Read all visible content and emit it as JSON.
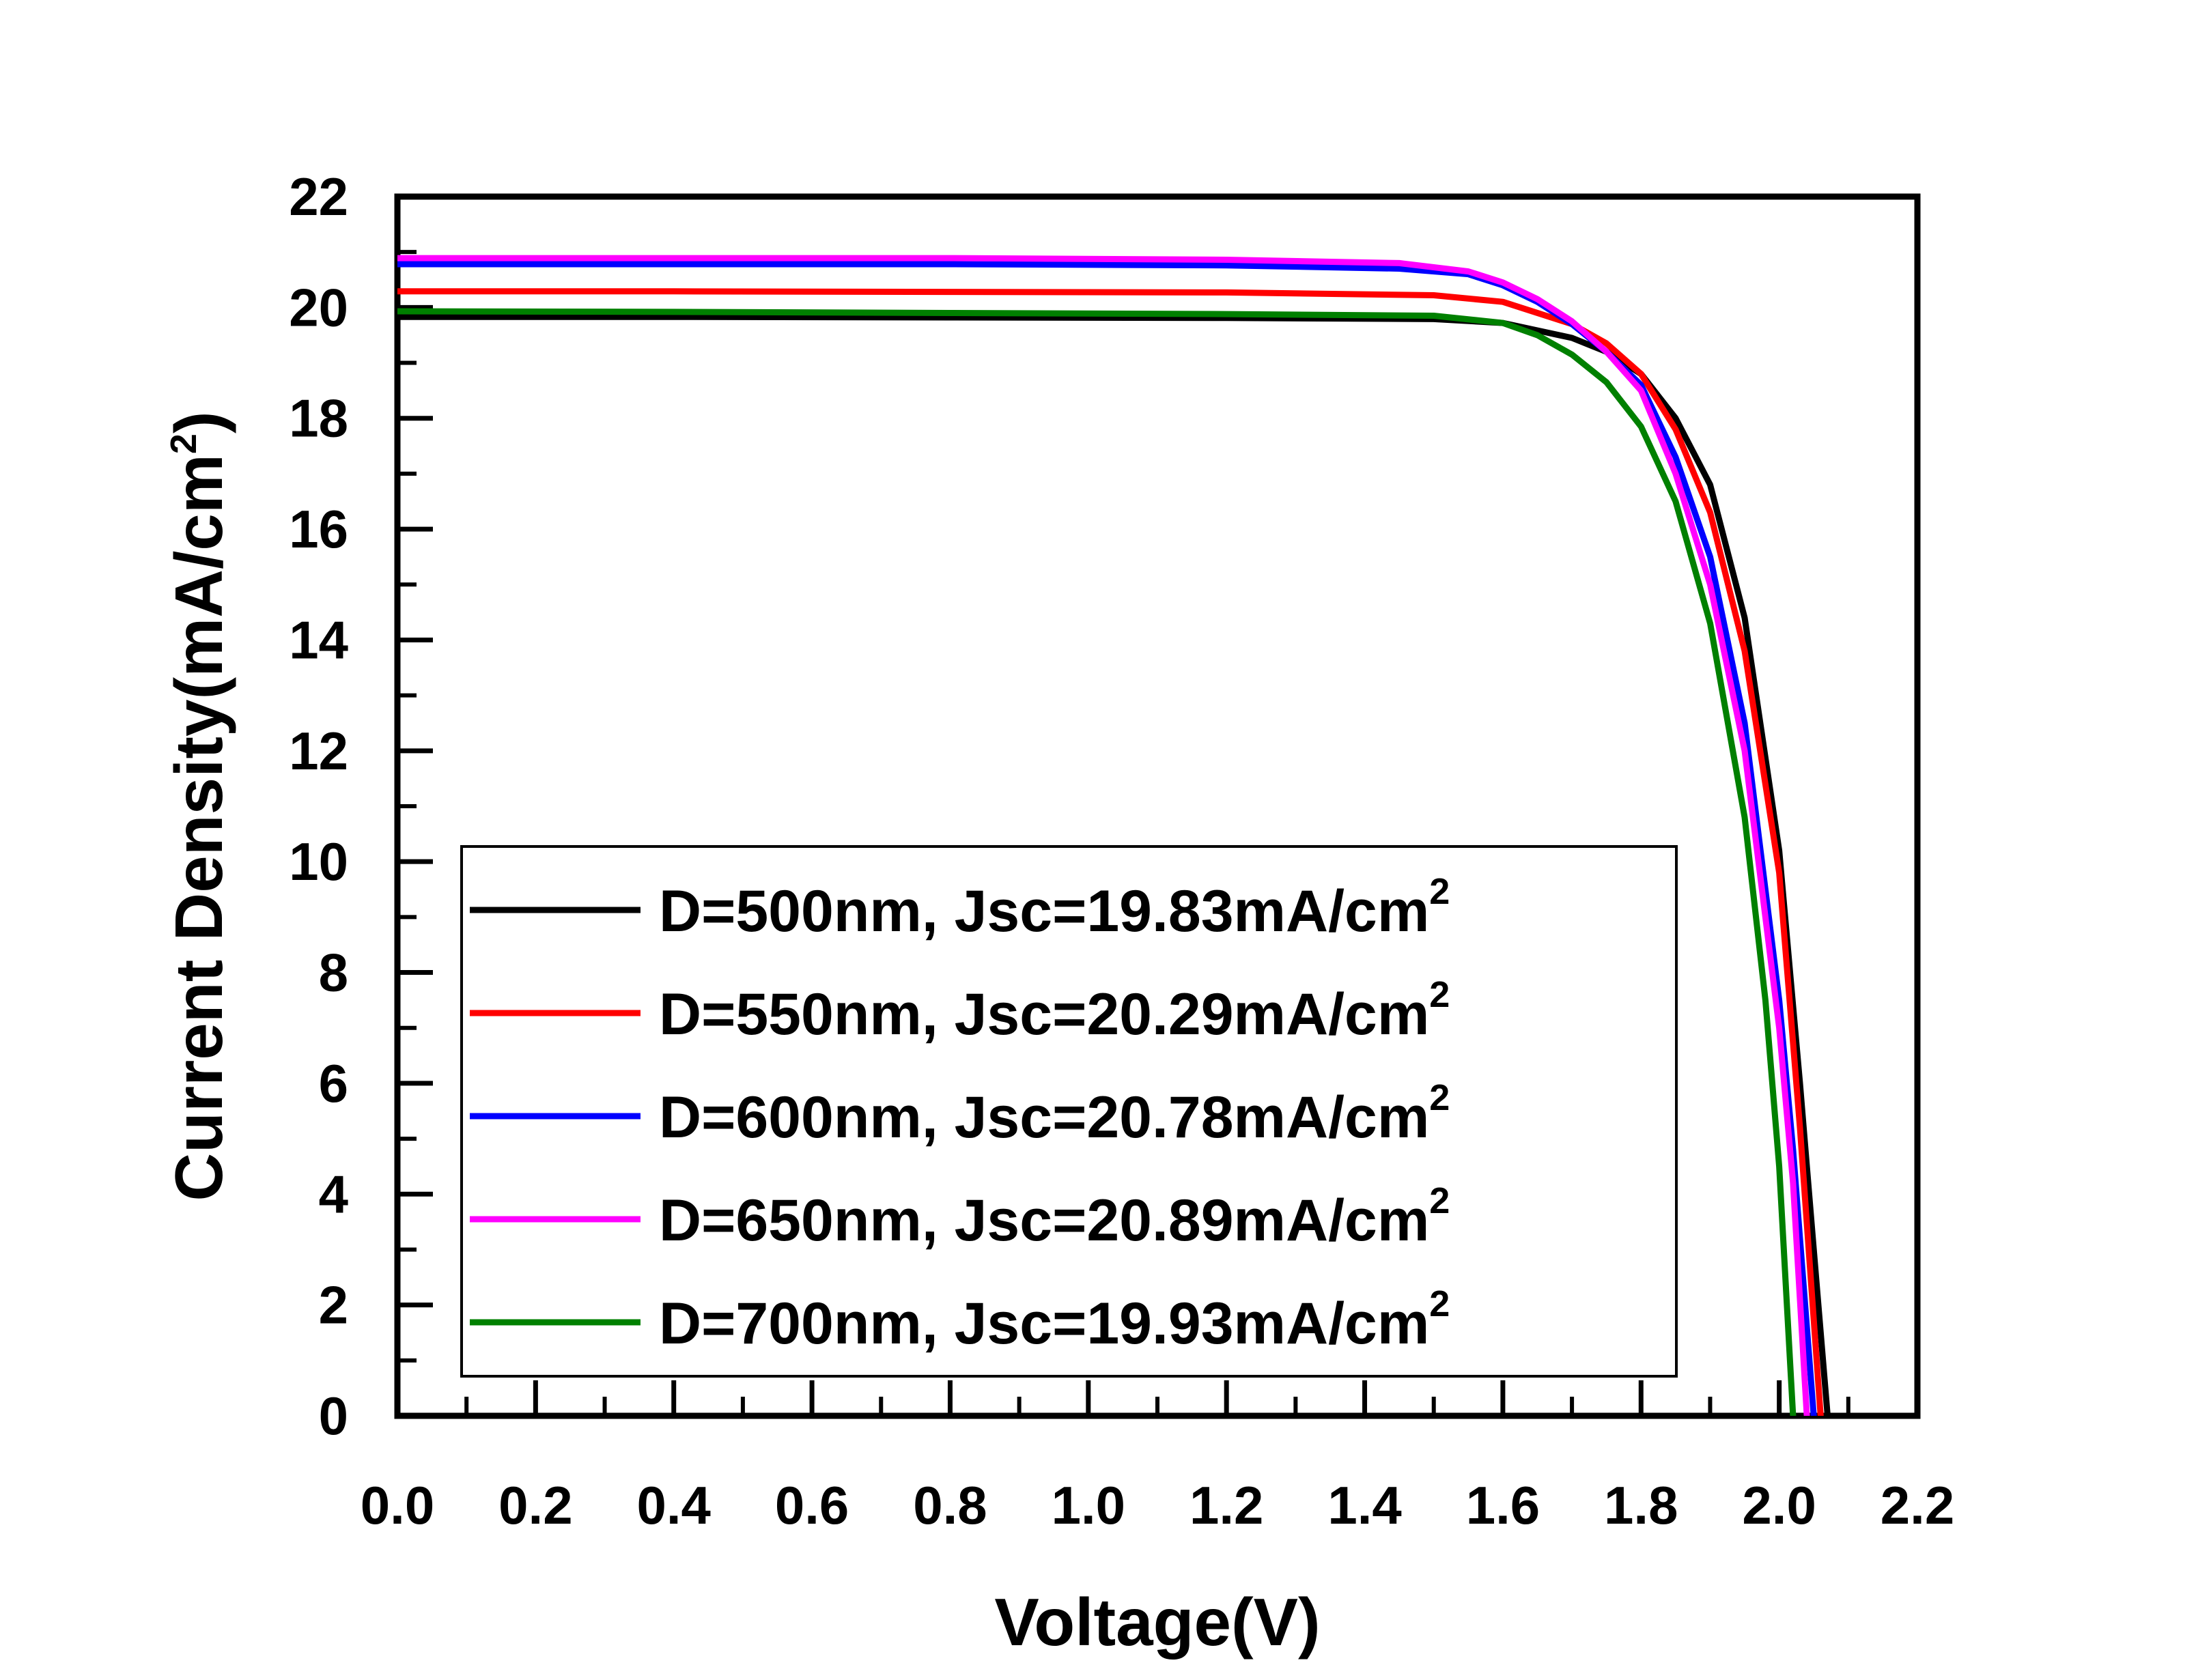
{
  "chart_data": {
    "type": "line",
    "xlabel": "Voltage(V)",
    "ylabel": "Current Density(mA/cm",
    "ylabel_sup": "2",
    "ylabel_close": ")",
    "xlim": [
      0,
      2.2
    ],
    "ylim": [
      0,
      22
    ],
    "xticks": [
      0.0,
      0.2,
      0.4,
      0.6,
      0.8,
      1.0,
      1.2,
      1.4,
      1.6,
      1.8,
      2.0,
      2.2
    ],
    "xtick_labels": [
      "0.0",
      "0.2",
      "0.4",
      "0.6",
      "0.8",
      "1.0",
      "1.2",
      "1.4",
      "1.6",
      "1.8",
      "2.0",
      "2.2"
    ],
    "yticks": [
      0,
      2,
      4,
      6,
      8,
      10,
      12,
      14,
      16,
      18,
      20,
      22
    ],
    "ytick_labels": [
      "0",
      "2",
      "4",
      "6",
      "8",
      "10",
      "12",
      "14",
      "16",
      "18",
      "20",
      "22"
    ],
    "grid": false,
    "legend_position": "bottom-left",
    "series": [
      {
        "name": "D=500nm, Jsc=19.83mA/cm",
        "name_sup": "2",
        "color": "#000000",
        "x": [
          0.0,
          0.4,
          0.8,
          1.2,
          1.5,
          1.6,
          1.7,
          1.75,
          1.8,
          1.85,
          1.9,
          1.95,
          2.0,
          2.03,
          2.05,
          2.07
        ],
        "y": [
          19.83,
          19.83,
          19.82,
          19.81,
          19.79,
          19.72,
          19.45,
          19.2,
          18.8,
          18.0,
          16.8,
          14.4,
          10.2,
          6.0,
          3.0,
          0.0
        ]
      },
      {
        "name": "D=550nm, Jsc=20.29mA/cm",
        "name_sup": "2",
        "color": "#ff0000",
        "x": [
          0.0,
          0.4,
          0.8,
          1.2,
          1.5,
          1.6,
          1.7,
          1.75,
          1.8,
          1.85,
          1.9,
          1.95,
          2.0,
          2.03,
          2.06
        ],
        "y": [
          20.29,
          20.29,
          20.28,
          20.27,
          20.22,
          20.1,
          19.7,
          19.35,
          18.8,
          17.8,
          16.3,
          13.8,
          9.8,
          5.2,
          0.0
        ]
      },
      {
        "name": "D=600nm, Jsc=20.78mA/cm",
        "name_sup": "2",
        "color": "#0000ff",
        "x": [
          0.0,
          0.4,
          0.8,
          1.2,
          1.45,
          1.55,
          1.6,
          1.65,
          1.7,
          1.75,
          1.8,
          1.85,
          1.9,
          1.95,
          2.0,
          2.02,
          2.05
        ],
        "y": [
          20.78,
          20.78,
          20.78,
          20.76,
          20.7,
          20.6,
          20.4,
          20.1,
          19.7,
          19.2,
          18.6,
          17.3,
          15.5,
          12.5,
          7.5,
          4.8,
          0.0
        ]
      },
      {
        "name": "D=650nm, Jsc=20.89mA/cm",
        "name_sup": "2",
        "color": "#ff00ff",
        "x": [
          0.0,
          0.4,
          0.8,
          1.2,
          1.45,
          1.55,
          1.6,
          1.65,
          1.7,
          1.75,
          1.8,
          1.85,
          1.9,
          1.95,
          2.0,
          2.02,
          2.04
        ],
        "y": [
          20.89,
          20.89,
          20.89,
          20.86,
          20.8,
          20.65,
          20.45,
          20.15,
          19.75,
          19.2,
          18.5,
          17.0,
          15.0,
          12.0,
          7.0,
          4.2,
          0.0
        ]
      },
      {
        "name": "D=700nm, Jsc=19.93mA/cm",
        "name_sup": "2",
        "color": "#008000",
        "x": [
          0.0,
          0.4,
          0.8,
          1.2,
          1.5,
          1.6,
          1.65,
          1.7,
          1.75,
          1.8,
          1.85,
          1.9,
          1.95,
          1.98,
          2.0,
          2.02
        ],
        "y": [
          19.93,
          19.92,
          19.9,
          19.88,
          19.85,
          19.72,
          19.5,
          19.15,
          18.65,
          17.85,
          16.5,
          14.3,
          10.8,
          7.5,
          4.5,
          0.0
        ]
      }
    ]
  }
}
